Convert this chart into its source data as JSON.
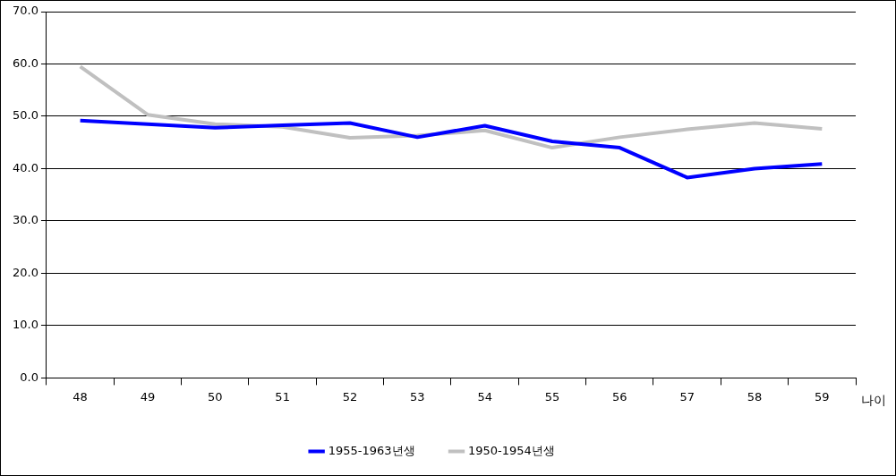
{
  "chart_data": {
    "type": "line",
    "xlabel": "나이",
    "categories": [
      "48",
      "49",
      "50",
      "51",
      "52",
      "53",
      "54",
      "55",
      "56",
      "57",
      "58",
      "59"
    ],
    "series": [
      {
        "name": "1955-1963년생",
        "color": "#0000ff",
        "values": [
          49.2,
          48.5,
          47.8,
          48.3,
          48.7,
          46.0,
          48.2,
          45.2,
          44.0,
          38.3,
          40.0,
          40.9
        ]
      },
      {
        "name": "1950-1954년생",
        "color": "#c0c0c0",
        "values": [
          59.5,
          50.3,
          48.5,
          48.0,
          45.9,
          46.3,
          47.3,
          44.0,
          46.0,
          47.5,
          48.7,
          47.6
        ]
      }
    ],
    "ylim": [
      0,
      70
    ],
    "yticks": [
      {
        "value": 0,
        "label": "0.0"
      },
      {
        "value": 10,
        "label": "10.0"
      },
      {
        "value": 20,
        "label": "20.0"
      },
      {
        "value": 30,
        "label": "30.0"
      },
      {
        "value": 40,
        "label": "40.0"
      },
      {
        "value": 50,
        "label": "50.0"
      },
      {
        "value": 60,
        "label": "60.0"
      },
      {
        "value": 70,
        "label": "70.0"
      }
    ],
    "grid": "y",
    "legend": "bottom",
    "marker": "none",
    "line_style": "solid"
  }
}
